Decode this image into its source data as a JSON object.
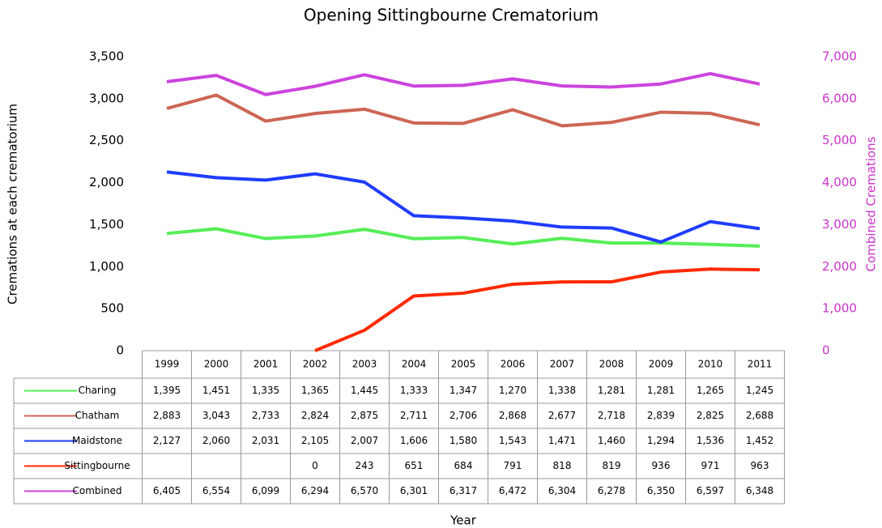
{
  "chart_data": {
    "type": "line",
    "title": "Opening Sittingbourne Crematorium",
    "ylabel": "Cremations at each crematorium",
    "y2label": "Combined Cremations",
    "xlabel": "Year",
    "categories": [
      "1999",
      "2000",
      "2001",
      "2002",
      "2003",
      "2004",
      "2005",
      "2006",
      "2007",
      "2008",
      "2009",
      "2010",
      "2011"
    ],
    "ylim": [
      0,
      3500
    ],
    "yticks": [
      0,
      500,
      {
        "value": 1000,
        "label": "1,000"
      },
      {
        "value": 1500,
        "label": "1,500"
      },
      {
        "value": 2000,
        "label": "2,000"
      },
      {
        "value": 2500,
        "label": "2,500"
      },
      {
        "value": 3000,
        "label": "3,000"
      },
      {
        "value": 3500,
        "label": "3,500"
      }
    ],
    "y2lim": [
      0,
      7000
    ],
    "y2ticks": [
      0,
      {
        "value": 1000,
        "label": "1,000"
      },
      {
        "value": 2000,
        "label": "2,000"
      },
      {
        "value": 3000,
        "label": "3,000"
      },
      {
        "value": 4000,
        "label": "4,000"
      },
      {
        "value": 5000,
        "label": "5,000"
      },
      {
        "value": 6000,
        "label": "6,000"
      },
      {
        "value": 7000,
        "label": "7,000"
      }
    ],
    "y2color": "#cc33cc",
    "series": [
      {
        "name": "Charing",
        "color": "#55ee55",
        "values": [
          1395,
          1451,
          1335,
          1365,
          1445,
          1333,
          1347,
          1270,
          1338,
          1281,
          1281,
          1265,
          1245
        ],
        "value_labels": [
          "1,395",
          "1,451",
          "1,335",
          "1,365",
          "1,445",
          "1,333",
          "1,347",
          "1,270",
          "1,338",
          "1,281",
          "1,281",
          "1,265",
          "1,245"
        ]
      },
      {
        "name": "Chatham",
        "color": "#cc6655",
        "values": [
          2883,
          3043,
          2733,
          2824,
          2875,
          2711,
          2706,
          2868,
          2677,
          2718,
          2839,
          2825,
          2688
        ],
        "value_labels": [
          "2,883",
          "3,043",
          "2,733",
          "2,824",
          "2,875",
          "2,711",
          "2,706",
          "2,868",
          "2,677",
          "2,718",
          "2,839",
          "2,825",
          "2,688"
        ]
      },
      {
        "name": "Maidstone",
        "color": "#1f3cff",
        "values": [
          2127,
          2060,
          2031,
          2105,
          2007,
          1606,
          1580,
          1543,
          1471,
          1460,
          1294,
          1536,
          1452
        ],
        "value_labels": [
          "2,127",
          "2,060",
          "2,031",
          "2,105",
          "2,007",
          "1,606",
          "1,580",
          "1,543",
          "1,471",
          "1,460",
          "1,294",
          "1,536",
          "1,452"
        ]
      },
      {
        "name": "Sittingbourne",
        "color": "#ff2a00",
        "values": [
          null,
          null,
          null,
          0,
          243,
          651,
          684,
          791,
          818,
          819,
          936,
          971,
          963
        ]
      },
      {
        "name": "Combined",
        "color": "#cc44dd",
        "axis": "y2",
        "values": [
          6405,
          6554,
          6099,
          6294,
          6570,
          6301,
          6317,
          6472,
          6304,
          6278,
          6350,
          6597,
          6348
        ],
        "value_labels": [
          "6,405",
          "6,554",
          "6,099",
          "6,294",
          "6,570",
          "6,301",
          "6,317",
          "6,472",
          "6,304",
          "6,278",
          "6,350",
          "6,597",
          "6,348"
        ]
      }
    ]
  }
}
